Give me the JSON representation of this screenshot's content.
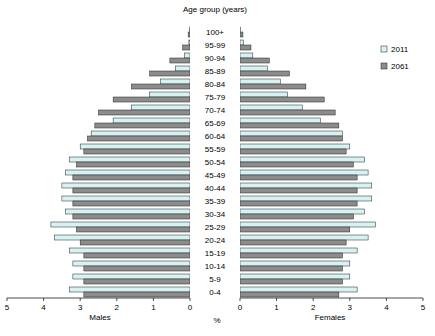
{
  "chart_data": {
    "type": "pyramid",
    "orientation": "horizontal",
    "ylabel": "Age group (years)",
    "xlabel": "%",
    "xlabel_left": "Males",
    "xlabel_right": "Females",
    "categories": [
      "0-4",
      "5-9",
      "10-14",
      "15-19",
      "20-24",
      "25-29",
      "30-34",
      "35-39",
      "40-44",
      "45-49",
      "50-54",
      "55-59",
      "60-64",
      "65-69",
      "70-74",
      "75-79",
      "80-84",
      "85-89",
      "90-94",
      "95-99",
      "100+"
    ],
    "xlim": [
      0,
      5
    ],
    "xticks": [
      0,
      1,
      2,
      3,
      4,
      5
    ],
    "legend": "upper right",
    "series": [
      {
        "name": "2011",
        "color": "#d6f2f2",
        "males": [
          3.3,
          3.2,
          3.2,
          3.3,
          3.7,
          3.8,
          3.4,
          3.5,
          3.5,
          3.4,
          3.3,
          3.0,
          2.7,
          2.1,
          1.6,
          1.1,
          0.8,
          0.4,
          0.15,
          0.03,
          0.01
        ],
        "females": [
          3.2,
          3.0,
          3.0,
          3.2,
          3.5,
          3.7,
          3.4,
          3.6,
          3.6,
          3.5,
          3.4,
          3.0,
          2.8,
          2.2,
          1.7,
          1.3,
          1.1,
          0.75,
          0.35,
          0.1,
          0.02
        ]
      },
      {
        "name": "2061",
        "color": "#8c8c8c",
        "males": [
          2.9,
          2.9,
          2.9,
          2.9,
          3.0,
          3.1,
          3.2,
          3.2,
          3.2,
          3.2,
          3.1,
          2.9,
          2.8,
          2.6,
          2.5,
          2.1,
          1.6,
          1.1,
          0.55,
          0.2,
          0.05
        ],
        "females": [
          2.7,
          2.8,
          2.8,
          2.8,
          2.9,
          3.0,
          3.1,
          3.2,
          3.2,
          3.2,
          3.1,
          2.9,
          2.8,
          2.7,
          2.6,
          2.3,
          1.8,
          1.35,
          0.8,
          0.3,
          0.08
        ]
      }
    ]
  }
}
